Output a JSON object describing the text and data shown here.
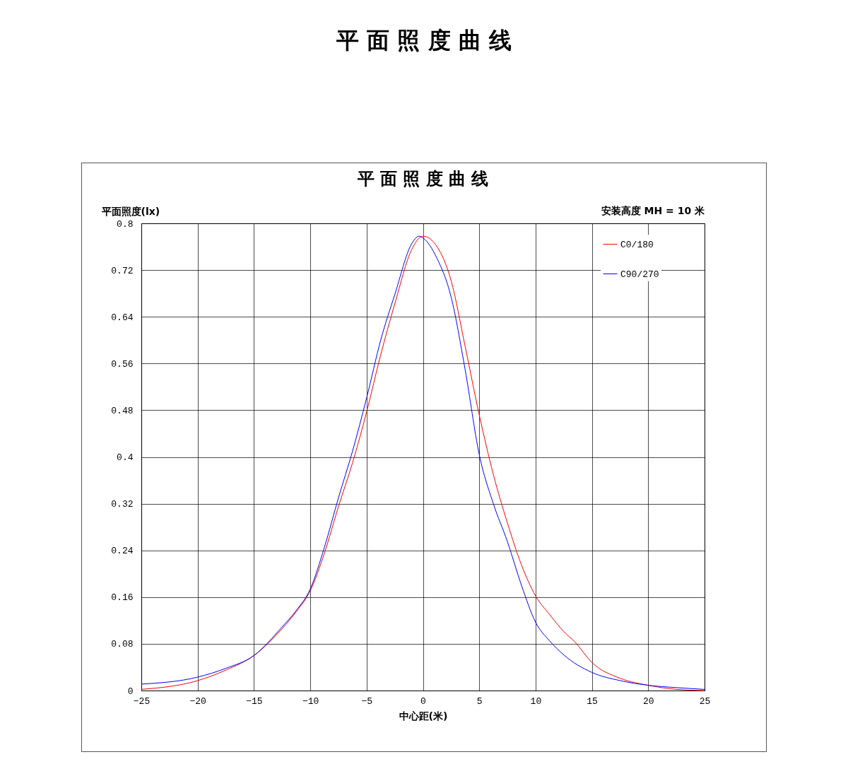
{
  "chart_data": {
    "type": "line",
    "title": "平 面 照 度 曲 线",
    "subtitle": "平 面 照 度 曲 线",
    "xlabel": "中心距(米)",
    "ylabel": "平面照度(lx)",
    "annotations": [
      "安装高度 MH = 10 米"
    ],
    "xlim": [
      -25,
      25
    ],
    "xticks": [
      -25,
      -20,
      -15,
      -10,
      -5,
      0,
      5,
      10,
      15,
      20,
      25
    ],
    "ylim": [
      0,
      0.8
    ],
    "yticks": [
      0,
      0.08,
      0.16,
      0.24,
      0.32,
      0.4,
      0.48,
      0.56,
      0.64,
      0.72,
      0.8
    ],
    "grid": true,
    "legend": "top right",
    "marker": "none",
    "line_style": "solid",
    "series": [
      {
        "name": "C0/180",
        "color": "#ff0000",
        "x": [
          -25,
          -20,
          -17.5,
          -15,
          -12.5,
          -11.25,
          -10,
          -8.75,
          -7.5,
          -6.25,
          -5,
          -3.75,
          -2.5,
          -1,
          0,
          1.25,
          2.5,
          3.75,
          5,
          6.25,
          7.5,
          8.75,
          10,
          11.25,
          12.5,
          13.5,
          15,
          17.5,
          20,
          22.5,
          25
        ],
        "values": [
          0.002,
          0.017,
          0.035,
          0.06,
          0.106,
          0.135,
          0.171,
          0.235,
          0.315,
          0.39,
          0.477,
          0.575,
          0.662,
          0.755,
          0.778,
          0.76,
          0.702,
          0.589,
          0.472,
          0.37,
          0.287,
          0.215,
          0.162,
          0.13,
          0.101,
          0.083,
          0.048,
          0.021,
          0.009,
          0.002,
          0.0
        ]
      },
      {
        "name": "C90/270",
        "color": "#0000ff",
        "x": [
          -25,
          -20,
          -17.5,
          -15,
          -12.5,
          -11.25,
          -10,
          -8.75,
          -7.5,
          -6.25,
          -5,
          -3.75,
          -2.5,
          -1,
          -0.35,
          0,
          1.25,
          2.5,
          3.75,
          5,
          6.25,
          7.5,
          8.75,
          10,
          11.25,
          12.5,
          15,
          17.5,
          20,
          22.5,
          25
        ],
        "values": [
          0.011,
          0.023,
          0.038,
          0.06,
          0.109,
          0.137,
          0.174,
          0.245,
          0.33,
          0.41,
          0.501,
          0.6,
          0.678,
          0.765,
          0.778,
          0.775,
          0.74,
          0.674,
          0.549,
          0.404,
          0.32,
          0.255,
          0.18,
          0.117,
          0.085,
          0.061,
          0.031,
          0.017,
          0.009,
          0.005,
          0.002
        ]
      }
    ]
  }
}
